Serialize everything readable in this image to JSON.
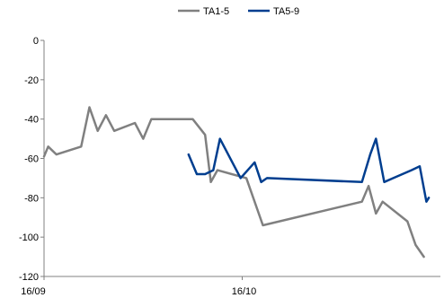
{
  "chart_data": {
    "type": "line",
    "title": "",
    "xlabel": "",
    "ylabel": "",
    "x_tick_labels": [
      "16/09",
      "16/10"
    ],
    "xlim": [
      0,
      48
    ],
    "ylim": [
      -120,
      0
    ],
    "y_ticks": [
      0,
      -20,
      -40,
      -60,
      -80,
      -100,
      -120
    ],
    "grid": false,
    "legend_position": "top",
    "series": [
      {
        "name": "TA1-5",
        "color": "#808080",
        "points": [
          [
            0,
            -59
          ],
          [
            0.5,
            -54
          ],
          [
            1.5,
            -58
          ],
          [
            4.5,
            -54
          ],
          [
            5.5,
            -34
          ],
          [
            6.5,
            -46
          ],
          [
            7.5,
            -38
          ],
          [
            8.5,
            -46
          ],
          [
            11,
            -42
          ],
          [
            12,
            -50
          ],
          [
            13,
            -40
          ],
          [
            18,
            -40
          ],
          [
            19.5,
            -48
          ],
          [
            20.2,
            -72
          ],
          [
            21,
            -66
          ],
          [
            24.5,
            -70
          ],
          [
            26.5,
            -94
          ],
          [
            38.5,
            -82
          ],
          [
            39.3,
            -74
          ],
          [
            40.2,
            -88
          ],
          [
            41,
            -82
          ],
          [
            44,
            -92
          ],
          [
            45,
            -104
          ],
          [
            46,
            -110
          ]
        ]
      },
      {
        "name": "TA5-9",
        "color": "#003E8F",
        "points": [
          [
            17.5,
            -58
          ],
          [
            18.5,
            -68
          ],
          [
            19.5,
            -68
          ],
          [
            20.5,
            -66
          ],
          [
            21.3,
            -50
          ],
          [
            23.8,
            -70
          ],
          [
            25.5,
            -62
          ],
          [
            26.3,
            -72
          ],
          [
            27,
            -70
          ],
          [
            38.5,
            -72
          ],
          [
            39.5,
            -58
          ],
          [
            40.2,
            -50
          ],
          [
            41.2,
            -72
          ],
          [
            42.3,
            -70
          ],
          [
            44.5,
            -66
          ],
          [
            45.5,
            -64
          ],
          [
            46.3,
            -82
          ],
          [
            46.6,
            -80
          ]
        ]
      }
    ]
  }
}
